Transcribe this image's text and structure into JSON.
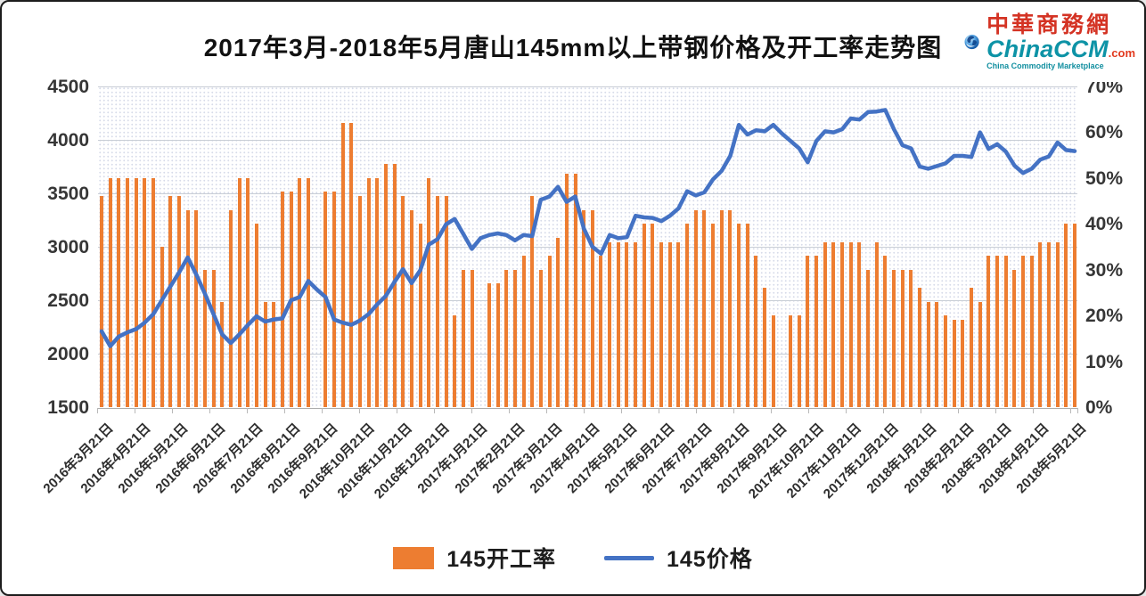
{
  "title": "2017年3月-2018年5月唐山145mm以上带钢价格及开工率走势图",
  "logo": {
    "cn_name": "中華商務網",
    "en_name": "ChinaCCM",
    "tld": ".com",
    "tagline": "China Commodity Marketplace"
  },
  "legend": {
    "bar_label": "145开工率",
    "line_label": "145价格"
  },
  "chart_data": {
    "type": "combo-bar-line",
    "title": "2017年3月-2018年5月唐山145mm以上带钢价格及开工率走势图",
    "grid": true,
    "legend_position": "bottom",
    "left_axis": {
      "min": 1500,
      "max": 4500,
      "step": 500,
      "ticks": [
        "4500",
        "4000",
        "3500",
        "3000",
        "2500",
        "2000",
        "1500"
      ]
    },
    "right_axis": {
      "min": 0,
      "max": 70,
      "step": 10,
      "ticks": [
        "70%",
        "60%",
        "50%",
        "40%",
        "30%",
        "20%",
        "10%",
        "0%"
      ]
    },
    "x_labels": [
      "2016年3月21日",
      "2016年4月21日",
      "2016年5月21日",
      "2016年6月21日",
      "2016年7月21日",
      "2016年8月21日",
      "2016年9月21日",
      "2016年10月21日",
      "2016年11月21日",
      "2016年12月21日",
      "2017年1月21日",
      "2017年2月21日",
      "2017年3月21日",
      "2017年4月21日",
      "2017年5月21日",
      "2017年6月21日",
      "2017年7月21日",
      "2017年8月21日",
      "2017年9月21日",
      "2017年10月21日",
      "2017年11月21日",
      "2017年12月21日",
      "2018年1月21日",
      "2018年2月21日",
      "2018年3月21日",
      "2018年4月21日",
      "2018年5月21日"
    ],
    "series": [
      {
        "name": "145开工率",
        "type": "bar",
        "axis": "right",
        "unit": "%",
        "color": "#ED7D31",
        "values": [
          46,
          50,
          50,
          50,
          50,
          50,
          50,
          35,
          46,
          46,
          43,
          43,
          30,
          30,
          23,
          43,
          50,
          50,
          40,
          23,
          23,
          47,
          47,
          50,
          50,
          null,
          47,
          47,
          62,
          62,
          46,
          50,
          50,
          53,
          53,
          46,
          43,
          40,
          50,
          46,
          46,
          20,
          30,
          30,
          null,
          27,
          27,
          30,
          30,
          33,
          46,
          30,
          33,
          37,
          51,
          51,
          43,
          43,
          33,
          36,
          36,
          36,
          36,
          40,
          40,
          36,
          36,
          36,
          40,
          43,
          43,
          40,
          43,
          43,
          40,
          40,
          33,
          26,
          20,
          null,
          20,
          20,
          33,
          33,
          36,
          36,
          36,
          36,
          36,
          30,
          36,
          33,
          30,
          30,
          30,
          26,
          23,
          23,
          20,
          19,
          19,
          26,
          23,
          33,
          33,
          33,
          30,
          33,
          33,
          36,
          36,
          36,
          40,
          40
        ]
      },
      {
        "name": "145价格",
        "type": "line",
        "axis": "left",
        "unit": "元/吨",
        "color": "#4472C4",
        "values": [
          2210,
          2070,
          2160,
          2200,
          2230,
          2290,
          2370,
          2500,
          2630,
          2760,
          2900,
          2740,
          2560,
          2370,
          2180,
          2100,
          2180,
          2270,
          2350,
          2300,
          2320,
          2330,
          2500,
          2530,
          2680,
          2600,
          2530,
          2320,
          2290,
          2270,
          2310,
          2370,
          2460,
          2540,
          2670,
          2790,
          2660,
          2780,
          3020,
          3070,
          3210,
          3260,
          3120,
          2980,
          3080,
          3110,
          3125,
          3110,
          3060,
          3110,
          3100,
          3440,
          3470,
          3560,
          3420,
          3470,
          3170,
          3000,
          2935,
          3110,
          3080,
          3090,
          3290,
          3275,
          3270,
          3240,
          3290,
          3360,
          3520,
          3480,
          3510,
          3630,
          3710,
          3850,
          4140,
          4050,
          4090,
          4080,
          4140,
          4060,
          3990,
          3920,
          3790,
          3990,
          4080,
          4070,
          4100,
          4200,
          4190,
          4260,
          4265,
          4280,
          4100,
          3950,
          3920,
          3750,
          3730,
          3755,
          3780,
          3850,
          3850,
          3840,
          4070,
          3915,
          3960,
          3890,
          3760,
          3690,
          3730,
          3815,
          3845,
          3975,
          3905,
          3895
        ]
      }
    ]
  },
  "colors": {
    "bar": "#ED7D31",
    "line": "#4472C4",
    "grid": "#c9ced6"
  }
}
